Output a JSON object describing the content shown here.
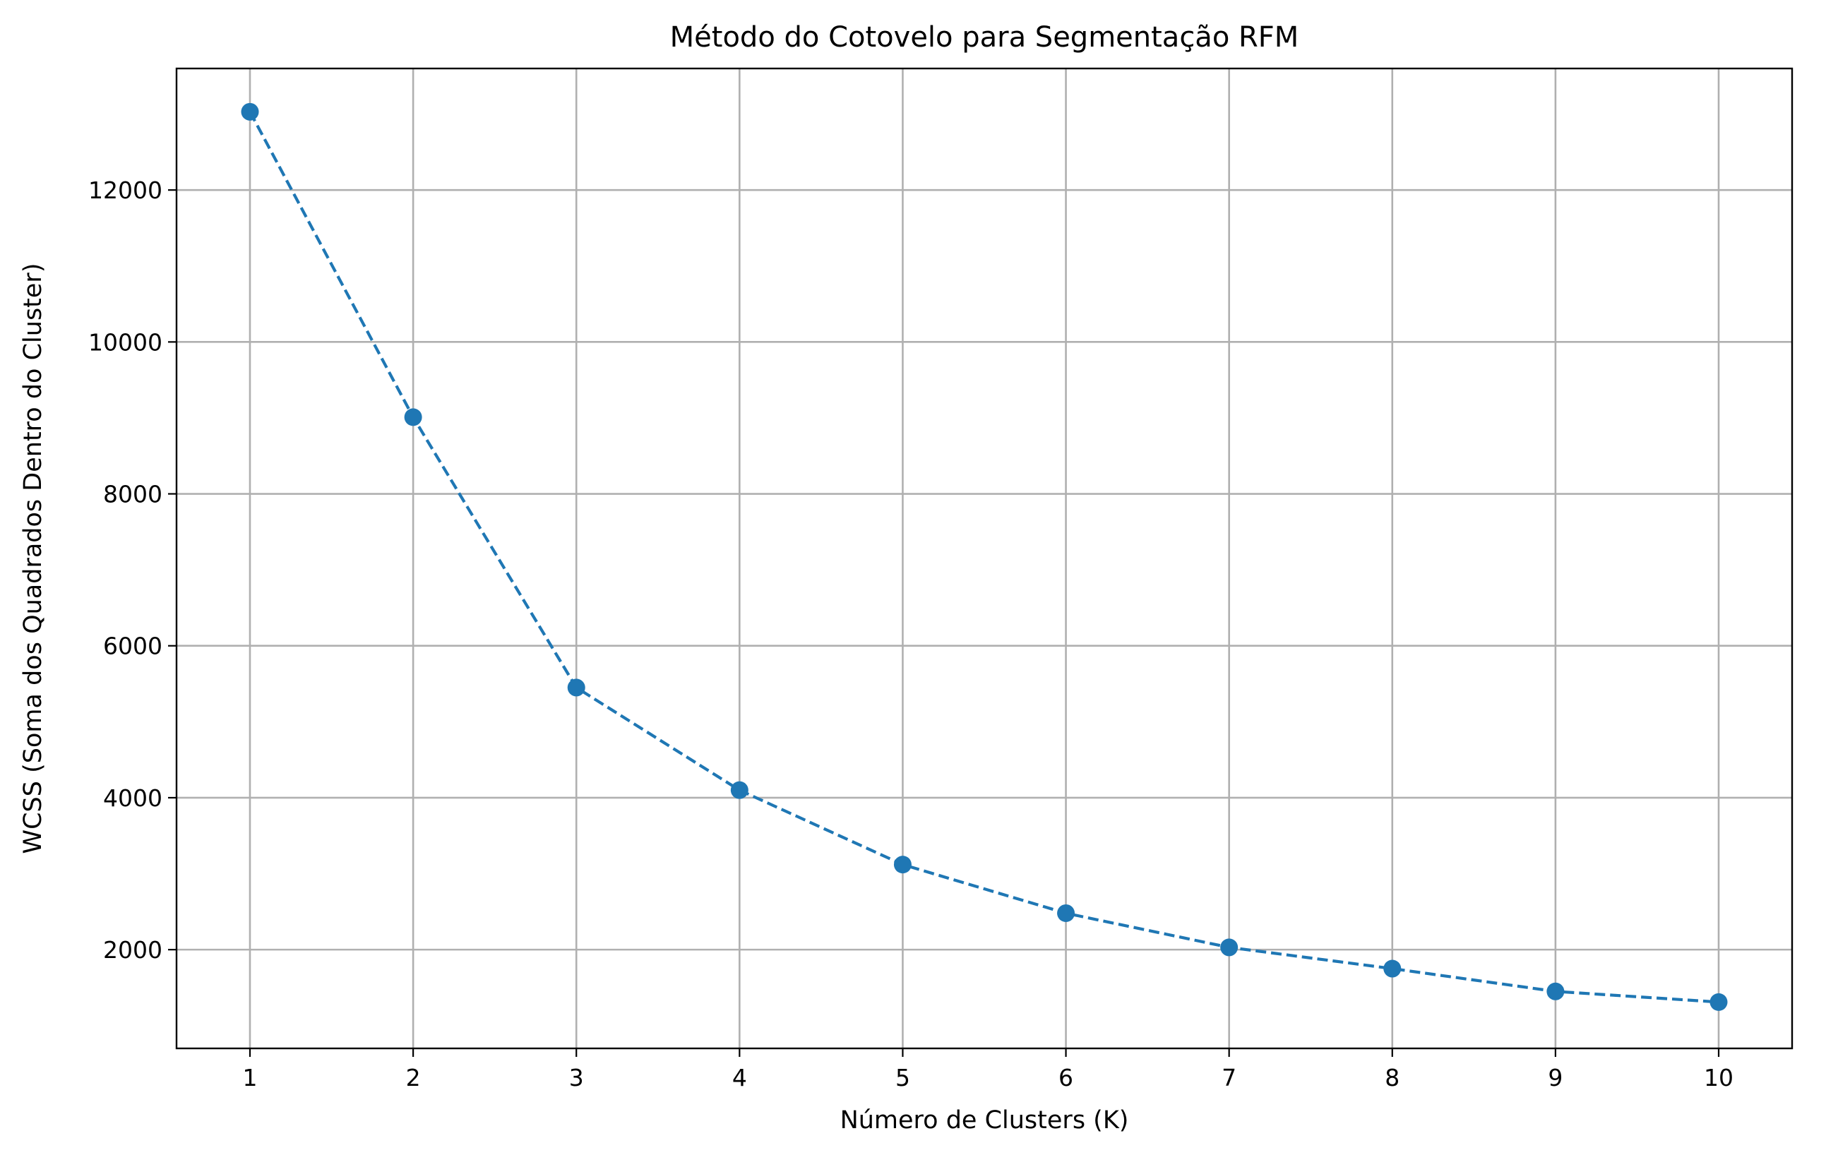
{
  "chart_data": {
    "type": "line",
    "title": "Método do Cotovelo para Segmentação RFM",
    "xlabel": "Número de Clusters (K)",
    "ylabel": "WCSS (Soma dos Quadrados Dentro do Cluster)",
    "x": [
      1,
      2,
      3,
      4,
      5,
      6,
      7,
      8,
      9,
      10
    ],
    "x_tick_labels": [
      "1",
      "2",
      "3",
      "4",
      "5",
      "6",
      "7",
      "8",
      "9",
      "10"
    ],
    "y_ticks": [
      2000,
      4000,
      6000,
      8000,
      10000,
      12000
    ],
    "y_tick_labels": [
      "2000",
      "4000",
      "6000",
      "8000",
      "10000",
      "12000"
    ],
    "xlim": [
      0.55,
      10.45
    ],
    "ylim": [
      700,
      13600
    ],
    "grid": true,
    "series": [
      {
        "name": "WCSS",
        "values": [
          13030,
          9010,
          5450,
          4100,
          3120,
          2480,
          2030,
          1750,
          1450,
          1310
        ],
        "color": "#1f77b4",
        "line_style": "dashed",
        "marker": "circle"
      }
    ]
  }
}
